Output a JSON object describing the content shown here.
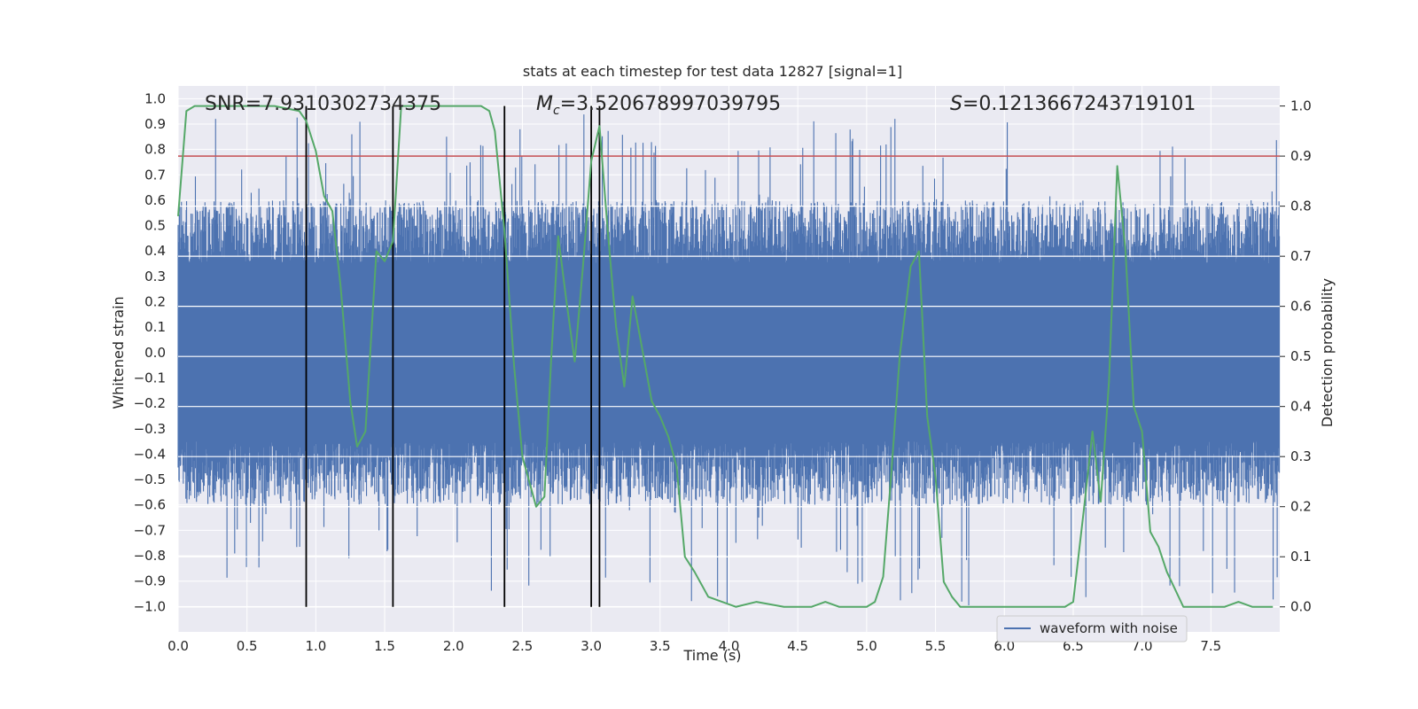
{
  "chart_data": {
    "type": "line",
    "title": "stats at each timestep for test data 12827 [signal=1]",
    "xlabel": "Time (s)",
    "ylabel": "Whitened strain",
    "ylabel_right": "Detection probability",
    "xlim": [
      0,
      8
    ],
    "ylim": [
      -1.1,
      1.05
    ],
    "ylim_right": [
      -0.05,
      1.04
    ],
    "x_ticks": [
      "0.0",
      "0.5",
      "1.0",
      "1.5",
      "2.0",
      "2.5",
      "3.0",
      "3.5",
      "4.0",
      "4.5",
      "5.0",
      "5.5",
      "6.0",
      "6.5",
      "7.0",
      "7.5"
    ],
    "y_ticks": [
      "1.0",
      "0.9",
      "0.8",
      "0.7",
      "0.6",
      "0.5",
      "0.4",
      "0.3",
      "0.2",
      "0.1",
      "0.0",
      "-0.1",
      "-0.2",
      "-0.3",
      "-0.4",
      "-0.5",
      "-0.6",
      "-0.7",
      "-0.8",
      "-0.9",
      "-1.0"
    ],
    "y_ticks_right": [
      "1.0",
      "0.9",
      "0.8",
      "0.7",
      "0.6",
      "0.5",
      "0.4",
      "0.3",
      "0.2",
      "0.1",
      "0.0"
    ],
    "grid": true,
    "legend": {
      "placement": "lower-center-right",
      "entries": [
        "waveform with noise"
      ]
    },
    "annotations": {
      "snr": "SNR=7.9310302734375",
      "mc_label": "M",
      "mc_sub": "c",
      "mc_value": "=3.520678997039795",
      "s_label": "S",
      "s_value": "=0.1213667243719101"
    },
    "threshold_right": 0.9,
    "vlines_x": [
      0.93,
      1.56,
      2.37,
      3.0,
      3.06
    ],
    "colors": {
      "waveform": "#4c72b0",
      "probability": "#55a868",
      "threshold": "#c44e52",
      "vlines": "#000000",
      "plot_bg": "#eaeaf2",
      "grid": "#ffffff"
    },
    "series": [
      {
        "name": "waveform with noise",
        "axis": "left",
        "envelope": {
          "seed": 12827,
          "samples": 3000,
          "core": 0.35,
          "typical_peak": 0.6,
          "max": 0.95,
          "min": -1.0
        }
      },
      {
        "axis": "right",
        "x": [
          0.0,
          0.06,
          0.12,
          0.2,
          0.3,
          0.5,
          0.7,
          0.88,
          0.93,
          1.0,
          1.06,
          1.12,
          1.18,
          1.25,
          1.3,
          1.36,
          1.44,
          1.5,
          1.56,
          1.62,
          1.68,
          1.75,
          2.0,
          2.2,
          2.26,
          2.3,
          2.37,
          2.44,
          2.5,
          2.57,
          2.6,
          2.66,
          2.71,
          2.76,
          2.82,
          2.88,
          2.94,
          3.0,
          3.06,
          3.12,
          3.18,
          3.24,
          3.3,
          3.36,
          3.44,
          3.5,
          3.56,
          3.62,
          3.68,
          3.75,
          3.85,
          3.95,
          4.05,
          4.2,
          4.4,
          4.6,
          4.7,
          4.8,
          4.9,
          5.0,
          5.06,
          5.12,
          5.18,
          5.24,
          5.32,
          5.38,
          5.44,
          5.5,
          5.56,
          5.62,
          5.68,
          5.9,
          6.2,
          6.44,
          6.5,
          6.58,
          6.64,
          6.7,
          6.76,
          6.82,
          6.88,
          6.94,
          7.0,
          7.06,
          7.12,
          7.18,
          7.3,
          7.5,
          7.6,
          7.7,
          7.8,
          7.86,
          7.95
        ],
        "values": [
          0.78,
          0.99,
          1.0,
          1.0,
          1.0,
          1.0,
          1.0,
          0.99,
          0.97,
          0.91,
          0.82,
          0.79,
          0.64,
          0.41,
          0.32,
          0.35,
          0.71,
          0.69,
          0.73,
          1.0,
          1.0,
          1.0,
          1.0,
          1.0,
          0.99,
          0.95,
          0.75,
          0.48,
          0.3,
          0.23,
          0.2,
          0.22,
          0.5,
          0.74,
          0.61,
          0.49,
          0.68,
          0.89,
          0.96,
          0.75,
          0.56,
          0.44,
          0.62,
          0.53,
          0.41,
          0.38,
          0.34,
          0.28,
          0.1,
          0.07,
          0.02,
          0.01,
          0.0,
          0.01,
          0.0,
          0.0,
          0.01,
          0.0,
          0.0,
          0.0,
          0.01,
          0.06,
          0.27,
          0.5,
          0.68,
          0.71,
          0.38,
          0.26,
          0.05,
          0.02,
          0.0,
          0.0,
          0.0,
          0.0,
          0.01,
          0.2,
          0.35,
          0.21,
          0.45,
          0.88,
          0.71,
          0.4,
          0.35,
          0.15,
          0.12,
          0.07,
          0.0,
          0.0,
          0.0,
          0.01,
          0.0,
          0.0,
          0.0
        ]
      }
    ]
  }
}
